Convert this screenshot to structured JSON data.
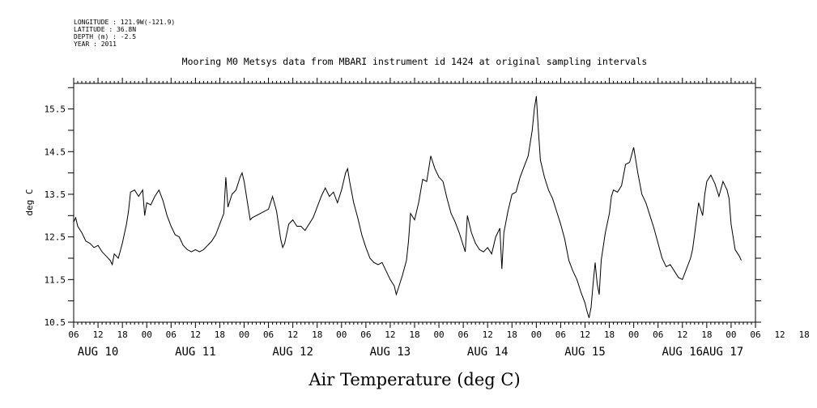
{
  "header": {
    "lines": [
      "LONGITUDE : 121.9W(-121.9)",
      "LATITUDE : 36.8N",
      "DEPTH (m) : -2.5",
      "YEAR : 2011"
    ]
  },
  "chart_data": {
    "type": "line",
    "title": "Mooring M0 Metsys data from MBARI instrument id 1424 at original sampling intervals",
    "xlabel": "Air Temperature (deg C)",
    "ylabel": "deg C",
    "ylim": [
      10.5,
      16.1
    ],
    "xlim_hours": [
      0,
      168
    ],
    "y_ticks": [
      "10.5",
      "11.5",
      "12.5",
      "13.5",
      "14.5",
      "15.5"
    ],
    "x_hour_tick_labels": [
      "06",
      "12",
      "18",
      "00",
      "06",
      "12",
      "18",
      "00",
      "06",
      "12",
      "18",
      "00",
      "06",
      "12",
      "18",
      "00",
      "06",
      "12",
      "18",
      "00",
      "06",
      "12",
      "18",
      "00",
      "06",
      "12",
      "18",
      "00",
      "06",
      "12",
      "18",
      "00",
      "06"
    ],
    "day_labels": [
      "AUG 10",
      "AUG 11",
      "AUG 12",
      "AUG 13",
      "AUG 14",
      "AUG 15",
      "AUG 16",
      "AUG 17"
    ],
    "grid": false,
    "series": [
      {
        "values": [
          [
            0,
            12.85
          ],
          [
            0.5,
            12.95
          ],
          [
            1,
            12.75
          ],
          [
            2,
            12.6
          ],
          [
            3,
            12.4
          ],
          [
            4,
            12.35
          ],
          [
            5,
            12.25
          ],
          [
            6,
            12.3
          ],
          [
            7,
            12.15
          ],
          [
            8,
            12.05
          ],
          [
            9,
            11.95
          ],
          [
            9.5,
            11.85
          ],
          [
            10,
            12.1
          ],
          [
            11,
            12.0
          ],
          [
            12,
            12.35
          ],
          [
            13,
            12.8
          ],
          [
            13.5,
            13.1
          ],
          [
            14,
            13.55
          ],
          [
            15,
            13.6
          ],
          [
            16,
            13.45
          ],
          [
            17,
            13.6
          ],
          [
            17.5,
            13.0
          ],
          [
            18,
            13.3
          ],
          [
            19,
            13.25
          ],
          [
            20,
            13.45
          ],
          [
            21,
            13.6
          ],
          [
            22,
            13.35
          ],
          [
            23,
            13.0
          ],
          [
            24,
            12.75
          ],
          [
            25,
            12.55
          ],
          [
            26,
            12.5
          ],
          [
            27,
            12.3
          ],
          [
            28,
            12.2
          ],
          [
            29,
            12.15
          ],
          [
            30,
            12.2
          ],
          [
            31,
            12.15
          ],
          [
            32,
            12.2
          ],
          [
            33,
            12.3
          ],
          [
            34,
            12.4
          ],
          [
            35,
            12.55
          ],
          [
            36,
            12.8
          ],
          [
            37,
            13.05
          ],
          [
            37.5,
            13.9
          ],
          [
            38,
            13.2
          ],
          [
            39,
            13.5
          ],
          [
            40,
            13.6
          ],
          [
            41,
            13.9
          ],
          [
            41.5,
            14.0
          ],
          [
            42,
            13.8
          ],
          [
            43,
            13.2
          ],
          [
            43.5,
            12.9
          ],
          [
            44,
            12.95
          ],
          [
            48,
            13.15
          ],
          [
            49,
            13.45
          ],
          [
            50,
            13.1
          ],
          [
            51,
            12.45
          ],
          [
            51.5,
            12.25
          ],
          [
            52,
            12.35
          ],
          [
            53,
            12.8
          ],
          [
            54,
            12.9
          ],
          [
            55,
            12.75
          ],
          [
            56,
            12.75
          ],
          [
            57,
            12.65
          ],
          [
            58,
            12.8
          ],
          [
            59,
            12.95
          ],
          [
            60,
            13.2
          ],
          [
            61,
            13.45
          ],
          [
            62,
            13.65
          ],
          [
            63,
            13.45
          ],
          [
            64,
            13.55
          ],
          [
            65,
            13.3
          ],
          [
            66,
            13.6
          ],
          [
            67,
            14.0
          ],
          [
            67.5,
            14.1
          ],
          [
            68,
            13.8
          ],
          [
            69,
            13.3
          ],
          [
            70,
            12.95
          ],
          [
            71,
            12.55
          ],
          [
            72,
            12.25
          ],
          [
            73,
            12.0
          ],
          [
            74,
            11.9
          ],
          [
            75,
            11.85
          ],
          [
            76,
            11.9
          ],
          [
            77,
            11.7
          ],
          [
            78,
            11.5
          ],
          [
            79,
            11.35
          ],
          [
            79.5,
            11.15
          ],
          [
            80,
            11.3
          ],
          [
            81,
            11.6
          ],
          [
            82,
            11.95
          ],
          [
            82.5,
            12.4
          ],
          [
            83,
            13.05
          ],
          [
            84,
            12.9
          ],
          [
            85,
            13.3
          ],
          [
            86,
            13.85
          ],
          [
            87,
            13.8
          ],
          [
            88,
            14.4
          ],
          [
            89,
            14.1
          ],
          [
            90,
            13.9
          ],
          [
            91,
            13.8
          ],
          [
            92,
            13.4
          ],
          [
            93,
            13.05
          ],
          [
            94,
            12.85
          ],
          [
            95,
            12.6
          ],
          [
            96,
            12.3
          ],
          [
            96.5,
            12.15
          ],
          [
            97,
            13.0
          ],
          [
            98,
            12.6
          ],
          [
            99,
            12.35
          ],
          [
            100,
            12.2
          ],
          [
            101,
            12.15
          ],
          [
            102,
            12.25
          ],
          [
            103,
            12.1
          ],
          [
            104,
            12.5
          ],
          [
            105,
            12.7
          ],
          [
            105.5,
            11.75
          ],
          [
            106,
            12.6
          ],
          [
            107,
            13.1
          ],
          [
            108,
            13.5
          ],
          [
            109,
            13.55
          ],
          [
            110,
            13.9
          ],
          [
            111,
            14.15
          ],
          [
            112,
            14.4
          ],
          [
            113,
            15.0
          ],
          [
            113.5,
            15.5
          ],
          [
            114,
            15.8
          ],
          [
            114.5,
            15.0
          ],
          [
            115,
            14.3
          ],
          [
            116,
            13.9
          ],
          [
            117,
            13.6
          ],
          [
            118,
            13.4
          ],
          [
            119,
            13.1
          ],
          [
            120,
            12.8
          ],
          [
            121,
            12.45
          ],
          [
            122,
            11.95
          ],
          [
            123,
            11.7
          ],
          [
            124,
            11.5
          ],
          [
            125,
            11.2
          ],
          [
            126,
            10.95
          ],
          [
            126.5,
            10.75
          ],
          [
            127,
            10.6
          ],
          [
            127.5,
            10.85
          ],
          [
            128,
            11.4
          ],
          [
            128.5,
            11.9
          ],
          [
            129,
            11.4
          ],
          [
            129.5,
            11.15
          ],
          [
            130,
            11.95
          ],
          [
            131,
            12.6
          ],
          [
            132,
            13.05
          ],
          [
            132.5,
            13.45
          ],
          [
            133,
            13.6
          ],
          [
            134,
            13.55
          ],
          [
            135,
            13.7
          ],
          [
            136,
            14.2
          ],
          [
            137,
            14.25
          ],
          [
            138,
            14.6
          ],
          [
            139,
            14.0
          ],
          [
            140,
            13.5
          ],
          [
            141,
            13.3
          ],
          [
            142,
            13.0
          ],
          [
            143,
            12.7
          ],
          [
            144,
            12.35
          ],
          [
            145,
            12.0
          ],
          [
            146,
            11.8
          ],
          [
            147,
            11.85
          ],
          [
            148,
            11.7
          ],
          [
            149,
            11.55
          ],
          [
            150,
            11.5
          ],
          [
            151,
            11.75
          ],
          [
            152,
            12.0
          ],
          [
            152.5,
            12.2
          ],
          [
            153,
            12.55
          ],
          [
            154,
            13.3
          ],
          [
            155,
            13.0
          ],
          [
            155.5,
            13.5
          ],
          [
            156,
            13.8
          ],
          [
            157,
            13.95
          ],
          [
            158,
            13.75
          ],
          [
            159,
            13.45
          ],
          [
            160,
            13.8
          ],
          [
            161,
            13.6
          ],
          [
            161.5,
            13.4
          ],
          [
            162,
            12.8
          ],
          [
            163,
            12.2
          ],
          [
            164,
            12.05
          ],
          [
            164.5,
            11.95
          ]
        ]
      }
    ]
  }
}
